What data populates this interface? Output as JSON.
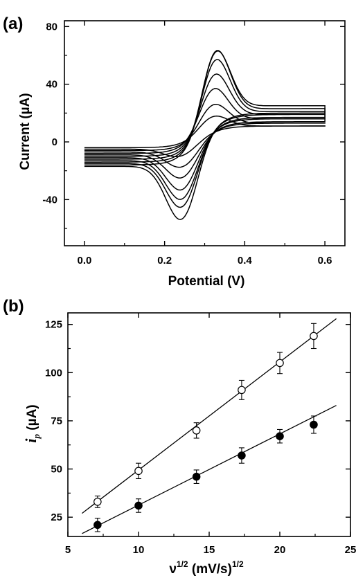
{
  "chart_data": [
    {
      "panel_label": "(a)",
      "type": "line",
      "xlabel": "Potential (V)",
      "ylabel": "Current (µA)",
      "xlim": [
        -0.05,
        0.65
      ],
      "ylim": [
        -72,
        84
      ],
      "xticks": [
        0.0,
        0.2,
        0.4,
        0.6
      ],
      "xtick_labels": [
        "0.0",
        "0.2",
        "0.4",
        "0.6"
      ],
      "yticks": [
        -40,
        0,
        40,
        80
      ],
      "ytick_labels": [
        "-40",
        "0",
        "40",
        "80"
      ],
      "grid": false,
      "legend": "none",
      "x_range_of_sweep": [
        0.0,
        0.6
      ],
      "series": [
        {
          "ipa": 20,
          "ipc": -12,
          "epa": 0.32,
          "epc": 0.24,
          "start": -4,
          "end_top": 11,
          "end_bottom": 11
        },
        {
          "ipa": 29,
          "ipc": -20,
          "epa": 0.32,
          "epc": 0.245,
          "start": -6,
          "end_top": 13,
          "end_bottom": 13
        },
        {
          "ipa": 41,
          "ipc": -28,
          "epa": 0.32,
          "epc": 0.245,
          "start": -8,
          "end_top": 16,
          "end_bottom": 14
        },
        {
          "ipa": 52,
          "ipc": -37,
          "epa": 0.323,
          "epc": 0.245,
          "start": -10,
          "end_top": 19,
          "end_bottom": 16
        },
        {
          "ipa": 63,
          "ipc": -44,
          "epa": 0.325,
          "epc": 0.245,
          "start": -12,
          "end_top": 21,
          "end_bottom": 17
        },
        {
          "ipa": 70,
          "ipc": -50,
          "epa": 0.326,
          "epc": 0.245,
          "start": -14,
          "end_top": 23,
          "end_bottom": 19
        },
        {
          "ipa": 70,
          "ipc": -59,
          "epa": 0.326,
          "epc": 0.245,
          "start": -16,
          "end_top": 25,
          "end_bottom": 20
        }
      ]
    },
    {
      "panel_label": "(b)",
      "type": "scatter",
      "xlabel": "ν",
      "xlabel_sup": "1/2",
      "xlabel_rest": " (mV/s)",
      "xlabel_rest_sup": "1/2",
      "ylabel_italic": "i",
      "ylabel_sub": "p",
      "ylabel_rest": " (µA)",
      "xlim": [
        5,
        25
      ],
      "ylim": [
        15,
        131
      ],
      "xticks": [
        5,
        10,
        15,
        20,
        25
      ],
      "xtick_labels": [
        "5",
        "10",
        "15",
        "20",
        "25"
      ],
      "yticks": [
        25,
        50,
        75,
        100,
        125
      ],
      "ytick_labels": [
        "25",
        "50",
        "75",
        "100",
        "125"
      ],
      "grid": false,
      "legend": "none",
      "series": [
        {
          "marker": "open-circle",
          "points": [
            {
              "x": 7.1,
              "y": 33,
              "err": 3
            },
            {
              "x": 10.0,
              "y": 49,
              "err": 4
            },
            {
              "x": 14.1,
              "y": 70,
              "err": 4
            },
            {
              "x": 17.3,
              "y": 91,
              "err": 5
            },
            {
              "x": 20.0,
              "y": 105,
              "err": 5.5
            },
            {
              "x": 22.4,
              "y": 119,
              "err": 6.5
            }
          ],
          "fit": {
            "x": [
              6.0,
              24.0
            ],
            "y": [
              27.0,
              128.0
            ]
          }
        },
        {
          "marker": "filled-circle",
          "points": [
            {
              "x": 7.1,
              "y": 21,
              "err": 3.5
            },
            {
              "x": 10.0,
              "y": 31,
              "err": 3.5
            },
            {
              "x": 14.1,
              "y": 46,
              "err": 3.5
            },
            {
              "x": 17.3,
              "y": 57,
              "err": 4
            },
            {
              "x": 20.0,
              "y": 67,
              "err": 3.5
            },
            {
              "x": 22.4,
              "y": 73,
              "err": 4.5
            }
          ],
          "fit": {
            "x": [
              6.0,
              24.0
            ],
            "y": [
              16.5,
              83.0
            ]
          }
        }
      ]
    }
  ]
}
